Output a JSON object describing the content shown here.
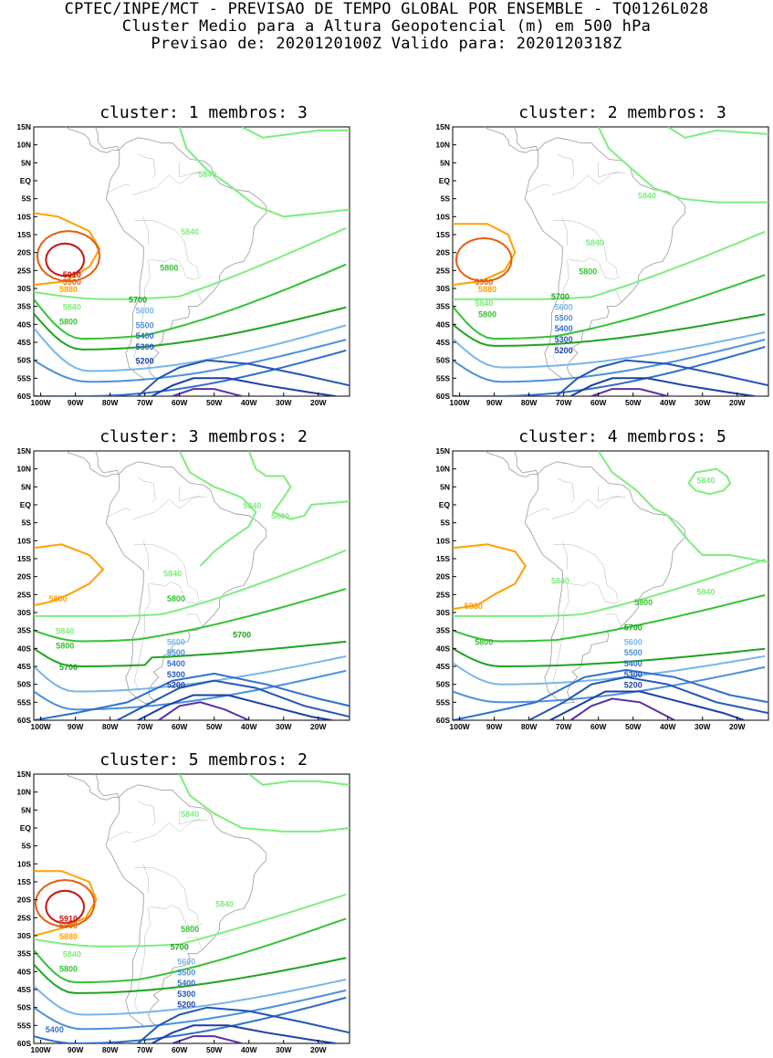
{
  "header": {
    "line1": "CPTEC/INPE/MCT - PREVISAO DE TEMPO GLOBAL POR ENSEMBLE - TQ0126L028",
    "line2": "Cluster Medio para a Altura Geopotencial (m) em 500 hPa",
    "line3": "Previsao de: 2020120100Z    Valido para: 2020120318Z"
  },
  "axes": {
    "lat_labels": [
      "15N",
      "10N",
      "5N",
      "EQ",
      "5S",
      "10S",
      "15S",
      "20S",
      "25S",
      "30S",
      "35S",
      "40S",
      "45S",
      "50S",
      "55S",
      "60S"
    ],
    "lon_labels": [
      "100W",
      "90W",
      "80W",
      "70W",
      "60W",
      "50W",
      "40W",
      "30W",
      "20W"
    ]
  },
  "colors": {
    "5200": "#1c3fa6",
    "5300": "#2356b5",
    "5400": "#2f6fce",
    "5500": "#4a90dd",
    "5600": "#78b6ea",
    "5700": "#1fa31f",
    "5800": "#34c234",
    "5840": "#7eed7e",
    "5880": "#ffa000",
    "5900": "#e45d0e",
    "5910": "#c61212",
    "5100": "#5a2fa8"
  },
  "clusters": [
    {
      "title": "cluster: 1   membros: 3",
      "labels": [
        {
          "text": "5840",
          "lon": -52,
          "lat": 1
        },
        {
          "text": "5840",
          "lon": -57,
          "lat": -15
        },
        {
          "text": "5800",
          "lon": -63,
          "lat": -25
        },
        {
          "text": "5910",
          "lon": -91,
          "lat": -27
        },
        {
          "text": "5900",
          "lon": -91,
          "lat": -29
        },
        {
          "text": "5880",
          "lon": -92,
          "lat": -31
        },
        {
          "text": "5840",
          "lon": -91,
          "lat": -36
        },
        {
          "text": "5800",
          "lon": -92,
          "lat": -40
        },
        {
          "text": "5700",
          "lon": -72,
          "lat": -34
        },
        {
          "text": "5600",
          "lon": -70,
          "lat": -37
        },
        {
          "text": "5500",
          "lon": -70,
          "lat": -41
        },
        {
          "text": "5400",
          "lon": -70,
          "lat": -44
        },
        {
          "text": "5300",
          "lon": -70,
          "lat": -47
        },
        {
          "text": "5200",
          "lon": -70,
          "lat": -51
        }
      ]
    },
    {
      "title": "cluster: 2   membros: 3",
      "labels": [
        {
          "text": "5840",
          "lon": -46,
          "lat": -5
        },
        {
          "text": "5840",
          "lon": -61,
          "lat": -18
        },
        {
          "text": "5800",
          "lon": -63,
          "lat": -26
        },
        {
          "text": "5900",
          "lon": -93,
          "lat": -29
        },
        {
          "text": "5880",
          "lon": -92,
          "lat": -31
        },
        {
          "text": "5840",
          "lon": -93,
          "lat": -35
        },
        {
          "text": "5800",
          "lon": -92,
          "lat": -38
        },
        {
          "text": "5700",
          "lon": -71,
          "lat": -33
        },
        {
          "text": "5600",
          "lon": -70,
          "lat": -36
        },
        {
          "text": "5500",
          "lon": -70,
          "lat": -39
        },
        {
          "text": "5400",
          "lon": -70,
          "lat": -42
        },
        {
          "text": "5300",
          "lon": -70,
          "lat": -45
        },
        {
          "text": "5200",
          "lon": -70,
          "lat": -48
        }
      ]
    },
    {
      "title": "cluster: 3   membros: 2",
      "labels": [
        {
          "text": "5840",
          "lon": -39,
          "lat": -1
        },
        {
          "text": "5840",
          "lon": -31,
          "lat": -4
        },
        {
          "text": "5840",
          "lon": -62,
          "lat": -20
        },
        {
          "text": "5800",
          "lon": -61,
          "lat": -27
        },
        {
          "text": "5880",
          "lon": -95,
          "lat": -27
        },
        {
          "text": "5840",
          "lon": -93,
          "lat": -36
        },
        {
          "text": "5800",
          "lon": -93,
          "lat": -40
        },
        {
          "text": "5700",
          "lon": -92,
          "lat": -46
        },
        {
          "text": "5700",
          "lon": -42,
          "lat": -37
        },
        {
          "text": "5600",
          "lon": -61,
          "lat": -39
        },
        {
          "text": "5500",
          "lon": -61,
          "lat": -42
        },
        {
          "text": "5400",
          "lon": -61,
          "lat": -45
        },
        {
          "text": "5300",
          "lon": -61,
          "lat": -48
        },
        {
          "text": "5200",
          "lon": -61,
          "lat": -51
        }
      ]
    },
    {
      "title": "cluster: 4   membros: 5",
      "labels": [
        {
          "text": "5840",
          "lon": -29,
          "lat": 6
        },
        {
          "text": "5840",
          "lon": -71,
          "lat": -22
        },
        {
          "text": "5840",
          "lon": -29,
          "lat": -25
        },
        {
          "text": "5800",
          "lon": -47,
          "lat": -28
        },
        {
          "text": "5880",
          "lon": -96,
          "lat": -29
        },
        {
          "text": "5800",
          "lon": -93,
          "lat": -39
        },
        {
          "text": "5700",
          "lon": -50,
          "lat": -35
        },
        {
          "text": "5600",
          "lon": -50,
          "lat": -39
        },
        {
          "text": "5500",
          "lon": -50,
          "lat": -42
        },
        {
          "text": "5400",
          "lon": -50,
          "lat": -45
        },
        {
          "text": "5300",
          "lon": -50,
          "lat": -48
        },
        {
          "text": "5200",
          "lon": -50,
          "lat": -51
        }
      ]
    },
    {
      "title": "cluster: 5   membros: 2",
      "labels": [
        {
          "text": "5840",
          "lon": -57,
          "lat": 3
        },
        {
          "text": "5840",
          "lon": -47,
          "lat": -22
        },
        {
          "text": "5800",
          "lon": -57,
          "lat": -29
        },
        {
          "text": "5910",
          "lon": -92,
          "lat": -26
        },
        {
          "text": "5900",
          "lon": -92,
          "lat": -28
        },
        {
          "text": "5880",
          "lon": -92,
          "lat": -31
        },
        {
          "text": "5840",
          "lon": -91,
          "lat": -36
        },
        {
          "text": "5800",
          "lon": -92,
          "lat": -40
        },
        {
          "text": "5700",
          "lon": -60,
          "lat": -34
        },
        {
          "text": "5600",
          "lon": -58,
          "lat": -38
        },
        {
          "text": "5500",
          "lon": -58,
          "lat": -41
        },
        {
          "text": "5400",
          "lon": -58,
          "lat": -44
        },
        {
          "text": "5300",
          "lon": -58,
          "lat": -47
        },
        {
          "text": "5200",
          "lon": -58,
          "lat": -50
        },
        {
          "text": "5400",
          "lon": -96,
          "lat": -57
        }
      ]
    }
  ]
}
